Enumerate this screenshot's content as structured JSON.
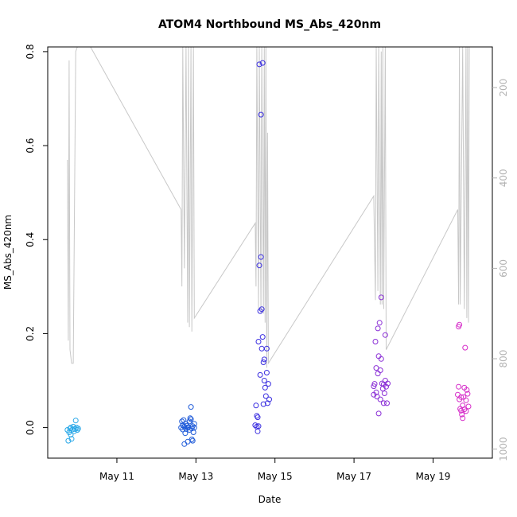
{
  "chart_data": {
    "type": "scatter",
    "title": "ATOM4 Northbound MS_Abs_420nm",
    "xlabel": "Date",
    "ylabel": "MS_Abs_420nm",
    "x_unit": "date",
    "xlim": [
      "2019-05-09 06:00",
      "2019-05-20 12:00"
    ],
    "ylim": [
      -0.065,
      0.81
    ],
    "x_ticks": [
      {
        "value": "2019-05-11",
        "label": "May 11"
      },
      {
        "value": "2019-05-13",
        "label": "May 13"
      },
      {
        "value": "2019-05-15",
        "label": "May 15"
      },
      {
        "value": "2019-05-17",
        "label": "May 17"
      },
      {
        "value": "2019-05-19",
        "label": "May 19"
      }
    ],
    "y_ticks": [
      0.0,
      0.2,
      0.4,
      0.6,
      0.8
    ],
    "y_tick_labels": [
      "0.0",
      "0.2",
      "0.4",
      "0.6",
      "0.8"
    ],
    "secondary_axis": {
      "side": "right",
      "reversed": true,
      "lim": [
        110,
        1020
      ],
      "ticks": [
        200,
        400,
        600,
        800,
        1000
      ],
      "tick_labels": [
        "200",
        "400",
        "600",
        "800",
        "1000"
      ],
      "color": "#b3b3b3"
    },
    "grid": false,
    "series": [
      {
        "color": "#29a8e8",
        "points": [
          [
            "2019-05-09 18:00",
            -0.005
          ],
          [
            "2019-05-09 18:30",
            -0.028
          ],
          [
            "2019-05-09 19:00",
            -0.01
          ],
          [
            "2019-05-09 19:30",
            -0.002
          ],
          [
            "2019-05-09 20:00",
            0.0
          ],
          [
            "2019-05-09 20:00",
            -0.015
          ],
          [
            "2019-05-09 20:30",
            -0.024
          ],
          [
            "2019-05-09 21:00",
            -0.004
          ],
          [
            "2019-05-09 21:30",
            0.002
          ],
          [
            "2019-05-09 22:00",
            -0.008
          ],
          [
            "2019-05-09 22:30",
            -0.003
          ],
          [
            "2019-05-09 23:00",
            0.015
          ],
          [
            "2019-05-09 23:30",
            0.0
          ],
          [
            "2019-05-10 00:00",
            -0.005
          ],
          [
            "2019-05-10 00:30",
            -0.002
          ]
        ]
      },
      {
        "color": "#1f5bd9",
        "points": [
          [
            "2019-05-12 15:00",
            0.0
          ],
          [
            "2019-05-12 15:30",
            0.013
          ],
          [
            "2019-05-12 16:00",
            0.005
          ],
          [
            "2019-05-12 16:00",
            -0.004
          ],
          [
            "2019-05-12 16:30",
            0.016
          ],
          [
            "2019-05-12 17:00",
            0.002
          ],
          [
            "2019-05-12 17:00",
            -0.035
          ],
          [
            "2019-05-12 17:30",
            -0.012
          ],
          [
            "2019-05-12 18:00",
            0.008
          ],
          [
            "2019-05-12 18:00",
            -0.003
          ],
          [
            "2019-05-12 18:30",
            0.004
          ],
          [
            "2019-05-12 19:00",
            -0.03
          ],
          [
            "2019-05-12 19:00",
            0.0
          ],
          [
            "2019-05-12 19:30",
            0.001
          ],
          [
            "2019-05-12 20:00",
            0.013
          ],
          [
            "2019-05-12 20:00",
            -0.005
          ],
          [
            "2019-05-12 20:30",
            0.02
          ],
          [
            "2019-05-12 21:00",
            0.044
          ],
          [
            "2019-05-12 21:00",
            0.018
          ],
          [
            "2019-05-12 21:30",
            -0.002
          ],
          [
            "2019-05-12 21:30",
            -0.025
          ],
          [
            "2019-05-12 22:00",
            0.003
          ],
          [
            "2019-05-12 22:00",
            -0.028
          ],
          [
            "2019-05-12 22:30",
            -0.01
          ],
          [
            "2019-05-12 23:00",
            0.008
          ],
          [
            "2019-05-12 23:00",
            0.0
          ]
        ]
      },
      {
        "color": "#3a2ee0",
        "points": [
          [
            "2019-05-14 12:00",
            0.005
          ],
          [
            "2019-05-14 12:30",
            0.047
          ],
          [
            "2019-05-14 13:00",
            0.025
          ],
          [
            "2019-05-14 13:00",
            0.002
          ],
          [
            "2019-05-14 13:30",
            -0.008
          ],
          [
            "2019-05-14 13:30",
            0.022
          ],
          [
            "2019-05-14 14:00",
            0.183
          ],
          [
            "2019-05-14 14:00",
            0.003
          ],
          [
            "2019-05-14 14:30",
            0.773
          ],
          [
            "2019-05-14 14:30",
            0.345
          ],
          [
            "2019-05-14 15:00",
            0.248
          ],
          [
            "2019-05-14 15:00",
            0.112
          ],
          [
            "2019-05-14 15:30",
            0.666
          ],
          [
            "2019-05-14 15:30",
            0.363
          ],
          [
            "2019-05-14 16:00",
            0.252
          ],
          [
            "2019-05-14 16:00",
            0.168
          ],
          [
            "2019-05-14 16:30",
            0.776
          ],
          [
            "2019-05-14 16:30",
            0.193
          ],
          [
            "2019-05-14 17:00",
            0.139
          ],
          [
            "2019-05-14 17:00",
            0.05
          ],
          [
            "2019-05-14 17:30",
            0.145
          ],
          [
            "2019-05-14 17:30",
            0.1
          ],
          [
            "2019-05-14 18:00",
            0.085
          ],
          [
            "2019-05-14 18:30",
            0.067
          ],
          [
            "2019-05-14 19:00",
            0.168
          ],
          [
            "2019-05-14 19:00",
            0.117
          ],
          [
            "2019-05-14 19:30",
            0.052
          ],
          [
            "2019-05-14 20:00",
            0.093
          ],
          [
            "2019-05-14 20:30",
            0.06
          ]
        ]
      },
      {
        "color": "#8a2ed6",
        "points": [
          [
            "2019-05-17 12:00",
            0.07
          ],
          [
            "2019-05-17 12:00",
            0.088
          ],
          [
            "2019-05-17 12:30",
            0.093
          ],
          [
            "2019-05-17 13:00",
            0.183
          ],
          [
            "2019-05-17 13:30",
            0.127
          ],
          [
            "2019-05-17 13:30",
            0.075
          ],
          [
            "2019-05-17 14:00",
            0.066
          ],
          [
            "2019-05-17 14:30",
            0.211
          ],
          [
            "2019-05-17 14:30",
            0.115
          ],
          [
            "2019-05-17 15:00",
            0.152
          ],
          [
            "2019-05-17 15:00",
            0.03
          ],
          [
            "2019-05-17 15:30",
            0.223
          ],
          [
            "2019-05-17 16:00",
            0.122
          ],
          [
            "2019-05-17 16:00",
            0.06
          ],
          [
            "2019-05-17 16:30",
            0.277
          ],
          [
            "2019-05-17 16:30",
            0.146
          ],
          [
            "2019-05-17 17:00",
            0.094
          ],
          [
            "2019-05-17 17:30",
            0.083
          ],
          [
            "2019-05-17 18:00",
            0.052
          ],
          [
            "2019-05-17 18:00",
            0.092
          ],
          [
            "2019-05-17 18:30",
            0.073
          ],
          [
            "2019-05-17 19:00",
            0.197
          ],
          [
            "2019-05-17 19:00",
            0.1
          ],
          [
            "2019-05-17 19:30",
            0.087
          ],
          [
            "2019-05-17 20:00",
            0.052
          ],
          [
            "2019-05-17 20:30",
            0.094
          ]
        ]
      },
      {
        "color": "#d62ec9",
        "points": [
          [
            "2019-05-19 15:00",
            0.07
          ],
          [
            "2019-05-19 15:30",
            0.215
          ],
          [
            "2019-05-19 15:30",
            0.087
          ],
          [
            "2019-05-19 16:00",
            0.219
          ],
          [
            "2019-05-19 16:00",
            0.06
          ],
          [
            "2019-05-19 16:30",
            0.04
          ],
          [
            "2019-05-19 17:00",
            0.036
          ],
          [
            "2019-05-19 17:00",
            0.065
          ],
          [
            "2019-05-19 17:30",
            0.028
          ],
          [
            "2019-05-19 18:00",
            0.047
          ],
          [
            "2019-05-19 18:00",
            0.02
          ],
          [
            "2019-05-19 18:30",
            0.065
          ],
          [
            "2019-05-19 19:00",
            0.039
          ],
          [
            "2019-05-19 19:00",
            0.085
          ],
          [
            "2019-05-19 19:30",
            0.17
          ],
          [
            "2019-05-19 20:00",
            0.058
          ],
          [
            "2019-05-19 20:00",
            0.035
          ],
          [
            "2019-05-19 20:30",
            0.08
          ],
          [
            "2019-05-19 21:00",
            0.072
          ],
          [
            "2019-05-19 21:30",
            0.045
          ]
        ]
      }
    ],
    "background_line": {
      "axis": "secondary",
      "color": "#c8c8c8",
      "points": [
        [
          "2019-05-09 18:00",
          360
        ],
        [
          "2019-05-09 18:30",
          760
        ],
        [
          "2019-05-09 19:00",
          140
        ],
        [
          "2019-05-09 19:30",
          780
        ],
        [
          "2019-05-09 20:30",
          810
        ],
        [
          "2019-05-09 21:30",
          810
        ],
        [
          "2019-05-09 23:00",
          120
        ],
        [
          "2019-05-10 00:00",
          110
        ],
        [
          "2019-05-10 08:00",
          110
        ],
        [
          "2019-05-12 15:00",
          470
        ],
        [
          "2019-05-12 15:30",
          640
        ],
        [
          "2019-05-12 16:00",
          110
        ],
        [
          "2019-05-12 17:00",
          600
        ],
        [
          "2019-05-12 18:00",
          110
        ],
        [
          "2019-05-12 19:00",
          720
        ],
        [
          "2019-05-12 19:30",
          110
        ],
        [
          "2019-05-12 20:00",
          730
        ],
        [
          "2019-05-12 21:00",
          110
        ],
        [
          "2019-05-12 21:30",
          740
        ],
        [
          "2019-05-12 22:30",
          110
        ],
        [
          "2019-05-12 23:00",
          710
        ],
        [
          "2019-05-14 12:00",
          500
        ],
        [
          "2019-05-14 12:30",
          640
        ],
        [
          "2019-05-14 13:00",
          110
        ],
        [
          "2019-05-14 14:00",
          690
        ],
        [
          "2019-05-14 14:30",
          110
        ],
        [
          "2019-05-14 15:30",
          700
        ],
        [
          "2019-05-14 16:00",
          110
        ],
        [
          "2019-05-14 17:00",
          700
        ],
        [
          "2019-05-14 17:30",
          110
        ],
        [
          "2019-05-14 18:00",
          720
        ],
        [
          "2019-05-14 18:30",
          110
        ],
        [
          "2019-05-14 19:00",
          820
        ],
        [
          "2019-05-14 19:30",
          300
        ],
        [
          "2019-05-14 20:00",
          810
        ],
        [
          "2019-05-17 12:00",
          440
        ],
        [
          "2019-05-17 13:00",
          670
        ],
        [
          "2019-05-17 13:30",
          110
        ],
        [
          "2019-05-17 14:30",
          650
        ],
        [
          "2019-05-17 15:00",
          110
        ],
        [
          "2019-05-17 16:00",
          680
        ],
        [
          "2019-05-17 16:30",
          120
        ],
        [
          "2019-05-17 17:00",
          680
        ],
        [
          "2019-05-17 17:30",
          110
        ],
        [
          "2019-05-17 18:00",
          690
        ],
        [
          "2019-05-17 19:00",
          110
        ],
        [
          "2019-05-17 19:30",
          780
        ],
        [
          "2019-05-19 15:00",
          470
        ],
        [
          "2019-05-19 15:30",
          680
        ],
        [
          "2019-05-19 16:00",
          110
        ],
        [
          "2019-05-19 16:30",
          680
        ],
        [
          "2019-05-19 18:00",
          110
        ],
        [
          "2019-05-19 19:00",
          690
        ],
        [
          "2019-05-19 20:00",
          110
        ],
        [
          "2019-05-19 20:30",
          710
        ],
        [
          "2019-05-19 21:00",
          110
        ],
        [
          "2019-05-19 21:30",
          720
        ],
        [
          "2019-05-19 22:00",
          110
        ]
      ]
    }
  }
}
